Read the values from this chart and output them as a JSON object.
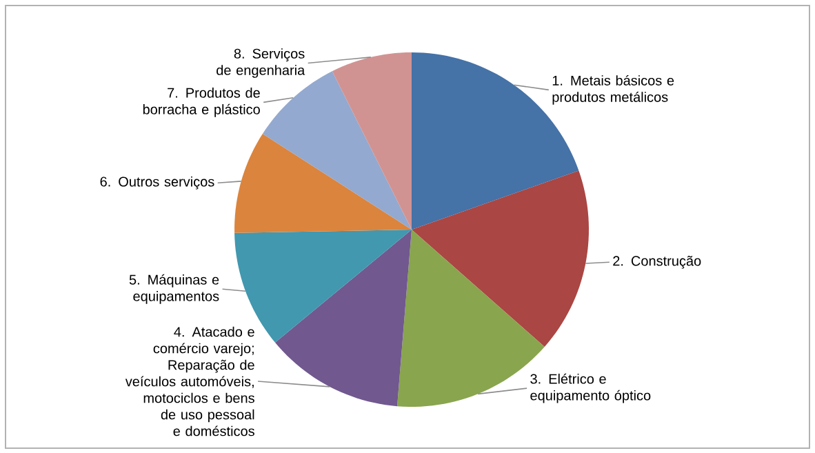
{
  "chart_data": {
    "type": "pie",
    "categories": [
      "1. Metais básicos e produtos metálicos",
      "2. Construção",
      "3. Elétrico e equipamento óptico",
      "4. Atacado e comércio varejo; Reparação de veículos automóveis, motociclos e bens de uso pessoal e domésticos",
      "5. Máquinas e equipamentos",
      "6. Outros serviços",
      "7. Produtos de borracha e plástico",
      "8. Serviços de engenharia"
    ],
    "values": [
      19.6,
      16.9,
      14.8,
      12.7,
      10.7,
      9.4,
      8.5,
      7.4
    ],
    "colors": [
      "#4572a7",
      "#aa4643",
      "#89a54e",
      "#71588f",
      "#4198af",
      "#db843d",
      "#93a9cf",
      "#d19392"
    ]
  }
}
